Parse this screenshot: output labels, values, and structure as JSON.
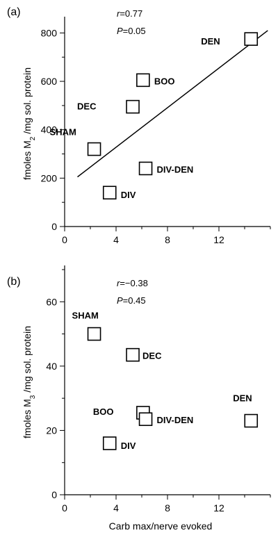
{
  "chart_data": [
    {
      "panel_label": "(a)",
      "type": "scatter",
      "stats": {
        "r_text": "r",
        "r_value": "=0.77",
        "p_text": "P",
        "p_value": "=0.05"
      },
      "ylabel_prefix": "fmoles M",
      "ylabel_sub": "2",
      "ylabel_suffix": " /mg sol. protein",
      "xlabel": "",
      "xlim": [
        0,
        16
      ],
      "ylim": [
        0,
        850
      ],
      "xticks": [
        0,
        4,
        8,
        12
      ],
      "yticks": [
        0,
        200,
        400,
        600,
        800
      ],
      "points": [
        {
          "label": "DEN",
          "x": 14.5,
          "y": 775
        },
        {
          "label": "BOO",
          "x": 6.1,
          "y": 605
        },
        {
          "label": "DEC",
          "x": 5.3,
          "y": 495
        },
        {
          "label": "SHAM",
          "x": 2.3,
          "y": 320
        },
        {
          "label": "DIV-DEN",
          "x": 6.3,
          "y": 240
        },
        {
          "label": "DIV",
          "x": 3.5,
          "y": 140
        }
      ],
      "fit_line": {
        "x": [
          1.0,
          15.8
        ],
        "y": [
          205,
          810
        ]
      }
    },
    {
      "panel_label": "(b)",
      "type": "scatter",
      "stats": {
        "r_text": "r",
        "r_value": "=−0.38",
        "p_text": "P",
        "p_value": "=0.45"
      },
      "ylabel_prefix": "fmoles M",
      "ylabel_sub": "3",
      "ylabel_suffix": " /mg sol. protein",
      "xlabel": "Carb max/nerve evoked",
      "xlim": [
        0,
        16
      ],
      "ylim": [
        0,
        70
      ],
      "xticks": [
        0,
        4,
        8,
        12
      ],
      "yticks": [
        0,
        20,
        40,
        60
      ],
      "points": [
        {
          "label": "SHAM",
          "x": 2.3,
          "y": 50
        },
        {
          "label": "DEC",
          "x": 5.3,
          "y": 43.5
        },
        {
          "label": "BOO",
          "x": 6.1,
          "y": 25.5
        },
        {
          "label": "DIV-DEN",
          "x": 6.3,
          "y": 23.5
        },
        {
          "label": "DEN",
          "x": 14.5,
          "y": 23
        },
        {
          "label": "DIV",
          "x": 3.5,
          "y": 16
        }
      ]
    }
  ]
}
